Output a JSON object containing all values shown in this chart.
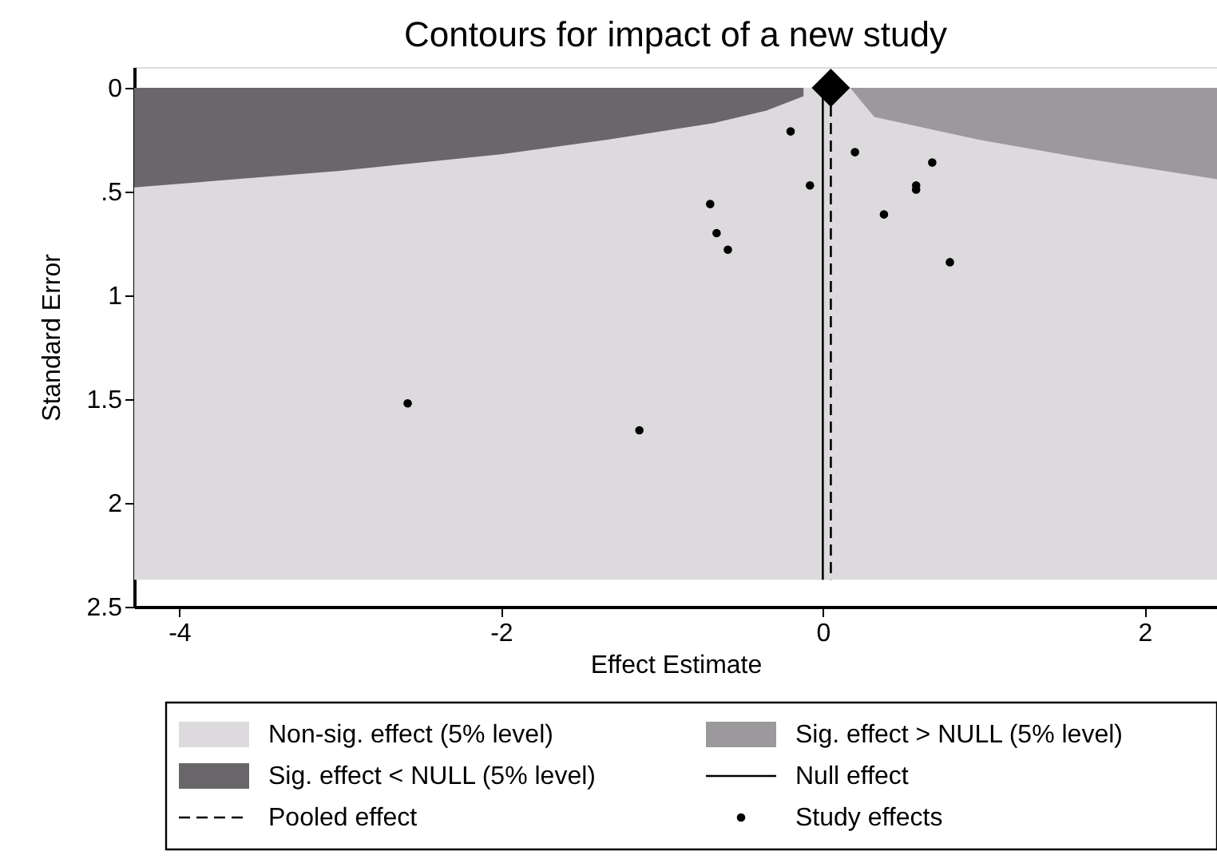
{
  "chart_data": {
    "type": "scatter",
    "title": "Contours for impact of a new study",
    "xlabel": "Effect Estimate",
    "ylabel": "Standard Error",
    "xlim": [
      -4.28,
      2.45
    ],
    "xticks": [
      -4,
      -2,
      0,
      2
    ],
    "ylim": [
      2.5,
      -0.1
    ],
    "yticks": [
      0,
      {
        "value": 0.5,
        "label": ".5"
      },
      1,
      1.5,
      2,
      2.5
    ],
    "grid": false,
    "legend": "bottom",
    "bands": [
      {
        "axis": "y",
        "from": 0,
        "to": 2.37,
        "label": "Non-sig. effect (5% level)",
        "color": "#dcdadc"
      }
    ],
    "ref_lines": [
      {
        "axis": "x",
        "value": 0,
        "label": "Null effect",
        "color": "#000000",
        "line_style": "solid"
      },
      {
        "axis": "x",
        "value": 0.05,
        "label": "Pooled effect",
        "color": "#000000",
        "line_style": "dashed"
      }
    ],
    "series": [
      {
        "name": "Sig. effect > NULL (5% level)",
        "type": "area",
        "color": "#9b999b",
        "x": [
          0.17,
          0.32,
          0.97,
          1.63,
          2.45
        ],
        "values": [
          0,
          0.14,
          0.25,
          0.34,
          0.44
        ]
      },
      {
        "name": "Sig. effect < NULL (5% level)",
        "type": "area",
        "color": "#69676a",
        "x": [
          -4.28,
          -3,
          -2,
          -1.34,
          -0.68,
          -0.35,
          -0.12
        ],
        "values": [
          0.48,
          0.4,
          0.32,
          0.25,
          0.17,
          0.11,
          0.04
        ]
      },
      {
        "name": "Study effects",
        "color": "#000000",
        "marker": "circle",
        "x": [
          -0.2,
          -0.08,
          -0.7,
          -0.66,
          -0.59,
          0.2,
          0.68,
          0.58,
          0.58,
          0.38,
          0.79,
          -1.14,
          -2.58
        ],
        "values": [
          0.21,
          0.47,
          0.56,
          0.7,
          0.78,
          0.31,
          0.36,
          0.47,
          0.49,
          0.61,
          0.84,
          1.65,
          1.52
        ]
      },
      {
        "color": "#000000",
        "marker": "diamond",
        "x": [
          0.05
        ],
        "values": [
          0
        ]
      }
    ]
  }
}
